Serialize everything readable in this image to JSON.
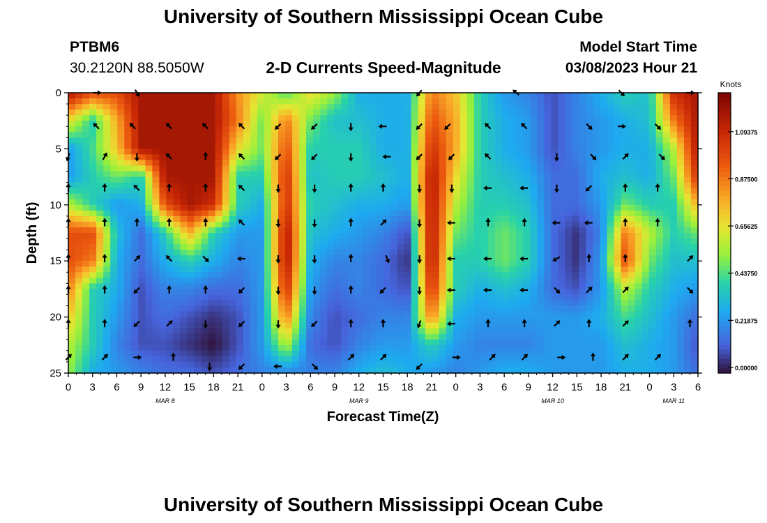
{
  "page_title": "University of Southern Mississippi Ocean Cube",
  "page_title_bottom": "University of Southern Mississippi Ocean Cube",
  "station": {
    "id": "PTBM6",
    "coords": "30.2120N  88.5050W"
  },
  "model": {
    "label": "Model Start Time",
    "value": "03/08/2023 Hour 21"
  },
  "colorbar": {
    "unit": "Knots",
    "ticks": [
      "1.09375",
      "0.87500",
      "0.65625",
      "0.43750",
      "0.21875",
      "0.00000"
    ],
    "tick_values": [
      1.09375,
      0.875,
      0.65625,
      0.4375,
      0.21875,
      0.0
    ],
    "range": [
      0,
      1.3
    ]
  },
  "chart_data": {
    "type": "heatmap",
    "title": "2-D Currents Speed-Magnitude",
    "xlabel": "Forecast Time(Z)",
    "ylabel": "Depth (ft)",
    "ylim": [
      0,
      25
    ],
    "y_ticks": [
      "0",
      "5",
      "10",
      "15",
      "20",
      "25"
    ],
    "y_tick_values": [
      0,
      5,
      10,
      15,
      20,
      25
    ],
    "x_ticks": [
      "0",
      "3",
      "6",
      "9",
      "12",
      "15",
      "18",
      "21",
      "0",
      "3",
      "6",
      "9",
      "12",
      "15",
      "18",
      "21",
      "0",
      "3",
      "6",
      "9",
      "12",
      "15",
      "18",
      "21",
      "0",
      "3",
      "6"
    ],
    "x_tick_hours": [
      0,
      3,
      6,
      9,
      12,
      15,
      18,
      21,
      24,
      27,
      30,
      33,
      36,
      39,
      42,
      45,
      48,
      51,
      54,
      57,
      60,
      63,
      66,
      69,
      72,
      75,
      78
    ],
    "date_labels": [
      {
        "text": "MAR 8",
        "hour": 12
      },
      {
        "text": "MAR 9",
        "hour": 36
      },
      {
        "text": "MAR 10",
        "hour": 60
      },
      {
        "text": "MAR 11",
        "hour": 75
      }
    ],
    "x_hours_range": [
      0,
      78
    ],
    "depths": [
      0,
      2.5,
      5,
      7.5,
      10,
      12.5,
      15,
      17.5,
      20,
      22.5,
      25
    ],
    "hours": [
      0,
      3,
      6,
      9,
      12,
      15,
      18,
      21,
      24,
      27,
      30,
      33,
      36,
      39,
      42,
      45,
      48,
      51,
      54,
      57,
      60,
      63,
      66,
      69,
      72,
      75,
      78
    ],
    "speed_knots": [
      [
        1.2,
        1.0,
        1.0,
        1.2,
        1.2,
        1.2,
        1.2,
        0.85,
        0.65,
        0.45,
        0.7,
        0.55,
        0.3,
        0.3,
        0.3,
        0.9,
        0.75,
        0.4,
        0.25,
        0.2,
        0.1,
        0.2,
        0.3,
        0.4,
        0.35,
        1.1,
        1.2
      ],
      [
        0.7,
        0.4,
        0.8,
        1.2,
        1.2,
        1.2,
        1.2,
        0.9,
        0.5,
        0.9,
        0.5,
        0.35,
        0.35,
        0.3,
        0.3,
        1.0,
        0.8,
        0.4,
        0.3,
        0.25,
        0.1,
        0.2,
        0.25,
        0.3,
        0.35,
        0.9,
        1.2
      ],
      [
        0.25,
        0.45,
        0.75,
        1.2,
        1.2,
        1.2,
        1.2,
        0.7,
        0.5,
        1.0,
        0.4,
        0.4,
        0.4,
        0.3,
        0.3,
        1.1,
        0.8,
        0.4,
        0.3,
        0.25,
        0.1,
        0.2,
        0.25,
        0.3,
        0.3,
        0.6,
        1.2
      ],
      [
        0.25,
        0.4,
        0.5,
        0.4,
        1.2,
        1.2,
        1.2,
        0.4,
        0.4,
        1.1,
        0.35,
        0.4,
        0.4,
        0.35,
        0.3,
        1.2,
        0.7,
        0.4,
        0.35,
        0.3,
        0.15,
        0.15,
        0.3,
        0.35,
        0.3,
        0.5,
        1.1
      ],
      [
        0.6,
        0.4,
        0.25,
        0.3,
        1.0,
        1.2,
        1.1,
        0.4,
        0.3,
        1.1,
        0.4,
        0.35,
        0.3,
        0.3,
        0.25,
        1.2,
        0.6,
        0.4,
        0.4,
        0.35,
        0.15,
        0.15,
        0.25,
        0.5,
        0.4,
        0.4,
        0.8
      ],
      [
        1.0,
        1.0,
        0.35,
        0.15,
        0.4,
        0.8,
        0.4,
        0.25,
        0.25,
        1.2,
        0.35,
        0.3,
        0.25,
        0.2,
        0.1,
        1.2,
        0.5,
        0.4,
        0.5,
        0.4,
        0.15,
        0.05,
        0.2,
        0.9,
        0.6,
        0.4,
        0.5
      ],
      [
        1.0,
        0.9,
        0.3,
        0.15,
        0.3,
        0.4,
        0.3,
        0.2,
        0.25,
        1.2,
        0.3,
        0.2,
        0.2,
        0.15,
        0.05,
        1.2,
        0.4,
        0.4,
        0.5,
        0.4,
        0.15,
        0.05,
        0.25,
        1.0,
        0.5,
        0.35,
        0.35
      ],
      [
        0.9,
        0.4,
        0.3,
        0.1,
        0.2,
        0.2,
        0.15,
        0.15,
        0.25,
        1.1,
        0.25,
        0.15,
        0.2,
        0.15,
        0.1,
        1.1,
        0.4,
        0.3,
        0.35,
        0.3,
        0.15,
        0.1,
        0.25,
        0.6,
        0.4,
        0.3,
        0.25
      ],
      [
        0.75,
        0.4,
        0.25,
        0.1,
        0.15,
        0.1,
        0.05,
        0.1,
        0.25,
        0.9,
        0.2,
        0.1,
        0.15,
        0.2,
        0.2,
        0.9,
        0.3,
        0.25,
        0.25,
        0.25,
        0.25,
        0.25,
        0.3,
        0.45,
        0.35,
        0.25,
        0.15
      ],
      [
        0.6,
        0.4,
        0.2,
        0.1,
        0.1,
        0.05,
        0.0,
        0.1,
        0.25,
        0.6,
        0.15,
        0.1,
        0.2,
        0.25,
        0.25,
        0.4,
        0.25,
        0.2,
        0.2,
        0.2,
        0.25,
        0.25,
        0.25,
        0.35,
        0.3,
        0.25,
        0.1
      ],
      [
        0.55,
        0.3,
        0.25,
        0.2,
        0.15,
        0.15,
        0.1,
        0.15,
        0.2,
        0.2,
        0.2,
        0.2,
        0.3,
        0.35,
        0.3,
        0.25,
        0.2,
        0.25,
        0.3,
        0.3,
        0.25,
        0.25,
        0.25,
        0.3,
        0.3,
        0.25,
        0.15
      ]
    ],
    "vectors": [
      {
        "hour": 3.5,
        "depth": 0.0,
        "dir": 90
      },
      {
        "hour": 8.5,
        "depth": 0.0,
        "dir": 150
      },
      {
        "hour": 43.5,
        "depth": 0.0,
        "dir": 220
      },
      {
        "hour": 55.5,
        "depth": 0.0,
        "dir": 310
      },
      {
        "hour": 68.5,
        "depth": 0.0,
        "dir": 135
      },
      {
        "hour": 77,
        "depth": 0.0,
        "dir": 90
      },
      {
        "hour": 3.5,
        "depth": 3.0,
        "dir": 315
      },
      {
        "hour": 8.0,
        "depth": 3.0,
        "dir": 315
      },
      {
        "hour": 12.5,
        "depth": 3.0,
        "dir": 315
      },
      {
        "hour": 17.0,
        "depth": 3.0,
        "dir": 315
      },
      {
        "hour": 21.5,
        "depth": 3.0,
        "dir": 315
      },
      {
        "hour": 26.0,
        "depth": 3.0,
        "dir": 225
      },
      {
        "hour": 30.5,
        "depth": 3.0,
        "dir": 225
      },
      {
        "hour": 35.0,
        "depth": 3.0,
        "dir": 180
      },
      {
        "hour": 39.0,
        "depth": 3.0,
        "dir": 270
      },
      {
        "hour": 43.5,
        "depth": 3.0,
        "dir": 225
      },
      {
        "hour": 47.0,
        "depth": 3.0,
        "dir": 225
      },
      {
        "hour": 52.0,
        "depth": 3.0,
        "dir": 315
      },
      {
        "hour": 56.5,
        "depth": 3.0,
        "dir": 315
      },
      {
        "hour": 64.5,
        "depth": 3.0,
        "dir": 135
      },
      {
        "hour": 68.5,
        "depth": 3.0,
        "dir": 90
      },
      {
        "hour": 73.0,
        "depth": 3.0,
        "dir": 135
      },
      {
        "hour": 0.0,
        "depth": 5.7,
        "dir": 200
      },
      {
        "hour": 4.5,
        "depth": 5.7,
        "dir": 30
      },
      {
        "hour": 8.5,
        "depth": 5.7,
        "dir": 180
      },
      {
        "hour": 12.5,
        "depth": 5.7,
        "dir": 315
      },
      {
        "hour": 17.0,
        "depth": 5.7,
        "dir": 0
      },
      {
        "hour": 21.5,
        "depth": 5.7,
        "dir": 315
      },
      {
        "hour": 26.0,
        "depth": 5.7,
        "dir": 225
      },
      {
        "hour": 30.5,
        "depth": 5.7,
        "dir": 225
      },
      {
        "hour": 35.0,
        "depth": 5.7,
        "dir": 180
      },
      {
        "hour": 39.5,
        "depth": 5.7,
        "dir": 270
      },
      {
        "hour": 43.5,
        "depth": 5.7,
        "dir": 225
      },
      {
        "hour": 47.5,
        "depth": 5.7,
        "dir": 225
      },
      {
        "hour": 52.0,
        "depth": 5.7,
        "dir": 315
      },
      {
        "hour": 60.5,
        "depth": 5.7,
        "dir": 180
      },
      {
        "hour": 65.0,
        "depth": 5.7,
        "dir": 135
      },
      {
        "hour": 69.0,
        "depth": 5.7,
        "dir": 45
      },
      {
        "hour": 73.5,
        "depth": 5.7,
        "dir": 135
      },
      {
        "hour": 0.0,
        "depth": 8.5,
        "dir": 0
      },
      {
        "hour": 4.5,
        "depth": 8.5,
        "dir": 0
      },
      {
        "hour": 8.5,
        "depth": 8.5,
        "dir": 315
      },
      {
        "hour": 12.5,
        "depth": 8.5,
        "dir": 0
      },
      {
        "hour": 17.0,
        "depth": 8.5,
        "dir": 0
      },
      {
        "hour": 21.5,
        "depth": 8.5,
        "dir": 315
      },
      {
        "hour": 26.0,
        "depth": 8.5,
        "dir": 180
      },
      {
        "hour": 30.5,
        "depth": 8.5,
        "dir": 180
      },
      {
        "hour": 35.0,
        "depth": 8.5,
        "dir": 0
      },
      {
        "hour": 39.0,
        "depth": 8.5,
        "dir": 0
      },
      {
        "hour": 43.5,
        "depth": 8.5,
        "dir": 180
      },
      {
        "hour": 47.5,
        "depth": 8.5,
        "dir": 180
      },
      {
        "hour": 52.0,
        "depth": 8.5,
        "dir": 270
      },
      {
        "hour": 56.5,
        "depth": 8.5,
        "dir": 270
      },
      {
        "hour": 60.5,
        "depth": 8.5,
        "dir": 180
      },
      {
        "hour": 64.5,
        "depth": 8.5,
        "dir": 225
      },
      {
        "hour": 69.0,
        "depth": 8.5,
        "dir": 0
      },
      {
        "hour": 73.0,
        "depth": 8.5,
        "dir": 0
      },
      {
        "hour": 0.0,
        "depth": 11.6,
        "dir": 0
      },
      {
        "hour": 4.5,
        "depth": 11.6,
        "dir": 0
      },
      {
        "hour": 8.5,
        "depth": 11.6,
        "dir": 0
      },
      {
        "hour": 12.5,
        "depth": 11.6,
        "dir": 0
      },
      {
        "hour": 17.0,
        "depth": 11.6,
        "dir": 0
      },
      {
        "hour": 21.5,
        "depth": 11.6,
        "dir": 315
      },
      {
        "hour": 26.0,
        "depth": 11.6,
        "dir": 180
      },
      {
        "hour": 30.5,
        "depth": 11.6,
        "dir": 180
      },
      {
        "hour": 35.0,
        "depth": 11.6,
        "dir": 0
      },
      {
        "hour": 39.0,
        "depth": 11.6,
        "dir": 45
      },
      {
        "hour": 43.5,
        "depth": 11.6,
        "dir": 180
      },
      {
        "hour": 47.5,
        "depth": 11.6,
        "dir": 270
      },
      {
        "hour": 52.0,
        "depth": 11.6,
        "dir": 0
      },
      {
        "hour": 56.5,
        "depth": 11.6,
        "dir": 0
      },
      {
        "hour": 60.5,
        "depth": 11.6,
        "dir": 270
      },
      {
        "hour": 64.5,
        "depth": 11.6,
        "dir": 270
      },
      {
        "hour": 69.0,
        "depth": 11.6,
        "dir": 0
      },
      {
        "hour": 73.0,
        "depth": 11.6,
        "dir": 0
      },
      {
        "hour": 0.0,
        "depth": 14.8,
        "dir": 0
      },
      {
        "hour": 4.5,
        "depth": 14.8,
        "dir": 0
      },
      {
        "hour": 8.5,
        "depth": 14.8,
        "dir": 45
      },
      {
        "hour": 12.5,
        "depth": 14.8,
        "dir": 315
      },
      {
        "hour": 17.0,
        "depth": 14.8,
        "dir": 135
      },
      {
        "hour": 21.5,
        "depth": 14.8,
        "dir": 270
      },
      {
        "hour": 26.0,
        "depth": 14.8,
        "dir": 180
      },
      {
        "hour": 30.5,
        "depth": 14.8,
        "dir": 180
      },
      {
        "hour": 35.0,
        "depth": 14.8,
        "dir": 0
      },
      {
        "hour": 39.5,
        "depth": 14.8,
        "dir": 160
      },
      {
        "hour": 43.5,
        "depth": 14.8,
        "dir": 180
      },
      {
        "hour": 47.5,
        "depth": 14.8,
        "dir": 270
      },
      {
        "hour": 52.0,
        "depth": 14.8,
        "dir": 270
      },
      {
        "hour": 56.5,
        "depth": 14.8,
        "dir": 270
      },
      {
        "hour": 60.5,
        "depth": 14.8,
        "dir": 240
      },
      {
        "hour": 64.5,
        "depth": 14.8,
        "dir": 0
      },
      {
        "hour": 69.0,
        "depth": 14.8,
        "dir": 0
      },
      {
        "hour": 77.0,
        "depth": 14.8,
        "dir": 45
      },
      {
        "hour": 0.0,
        "depth": 17.6,
        "dir": 0
      },
      {
        "hour": 4.5,
        "depth": 17.6,
        "dir": 0
      },
      {
        "hour": 8.5,
        "depth": 17.6,
        "dir": 225
      },
      {
        "hour": 12.5,
        "depth": 17.6,
        "dir": 0
      },
      {
        "hour": 17.0,
        "depth": 17.6,
        "dir": 0
      },
      {
        "hour": 21.5,
        "depth": 17.6,
        "dir": 225
      },
      {
        "hour": 26.0,
        "depth": 17.6,
        "dir": 180
      },
      {
        "hour": 30.5,
        "depth": 17.6,
        "dir": 180
      },
      {
        "hour": 35.0,
        "depth": 17.6,
        "dir": 0
      },
      {
        "hour": 39.0,
        "depth": 17.6,
        "dir": 225
      },
      {
        "hour": 43.5,
        "depth": 17.6,
        "dir": 180
      },
      {
        "hour": 47.5,
        "depth": 17.6,
        "dir": 270
      },
      {
        "hour": 52.0,
        "depth": 17.6,
        "dir": 270
      },
      {
        "hour": 56.5,
        "depth": 17.6,
        "dir": 270
      },
      {
        "hour": 60.5,
        "depth": 17.6,
        "dir": 135
      },
      {
        "hour": 64.5,
        "depth": 17.6,
        "dir": 45
      },
      {
        "hour": 69.0,
        "depth": 17.6,
        "dir": 45
      },
      {
        "hour": 77.0,
        "depth": 17.6,
        "dir": 135
      },
      {
        "hour": 0.0,
        "depth": 20.6,
        "dir": 0
      },
      {
        "hour": 4.5,
        "depth": 20.6,
        "dir": 0
      },
      {
        "hour": 8.5,
        "depth": 20.6,
        "dir": 225
      },
      {
        "hour": 12.5,
        "depth": 20.6,
        "dir": 45
      },
      {
        "hour": 17.0,
        "depth": 20.6,
        "dir": 180
      },
      {
        "hour": 21.5,
        "depth": 20.6,
        "dir": 225
      },
      {
        "hour": 26.0,
        "depth": 20.6,
        "dir": 180
      },
      {
        "hour": 30.5,
        "depth": 20.6,
        "dir": 225
      },
      {
        "hour": 35.0,
        "depth": 20.6,
        "dir": 0
      },
      {
        "hour": 39.0,
        "depth": 20.6,
        "dir": 0
      },
      {
        "hour": 43.5,
        "depth": 20.6,
        "dir": 200
      },
      {
        "hour": 47.5,
        "depth": 20.6,
        "dir": 270
      },
      {
        "hour": 52.0,
        "depth": 20.6,
        "dir": 0
      },
      {
        "hour": 56.5,
        "depth": 20.6,
        "dir": 0
      },
      {
        "hour": 60.5,
        "depth": 20.6,
        "dir": 45
      },
      {
        "hour": 64.5,
        "depth": 20.6,
        "dir": 0
      },
      {
        "hour": 69.0,
        "depth": 20.6,
        "dir": 45
      },
      {
        "hour": 77.0,
        "depth": 20.6,
        "dir": 0
      },
      {
        "hour": 0.0,
        "depth": 23.6,
        "dir": 45
      },
      {
        "hour": 4.5,
        "depth": 23.6,
        "dir": 45
      },
      {
        "hour": 8.5,
        "depth": 23.6,
        "dir": 90
      },
      {
        "hour": 13.0,
        "depth": 23.6,
        "dir": 0
      },
      {
        "hour": 17.5,
        "depth": 24.4,
        "dir": 180
      },
      {
        "hour": 21.5,
        "depth": 24.4,
        "dir": 225
      },
      {
        "hour": 26.0,
        "depth": 24.4,
        "dir": 270
      },
      {
        "hour": 30.5,
        "depth": 24.4,
        "dir": 135
      },
      {
        "hour": 35.0,
        "depth": 23.6,
        "dir": 45
      },
      {
        "hour": 39.0,
        "depth": 23.6,
        "dir": 45
      },
      {
        "hour": 43.5,
        "depth": 24.4,
        "dir": 225
      },
      {
        "hour": 48.0,
        "depth": 23.6,
        "dir": 90
      },
      {
        "hour": 52.5,
        "depth": 23.6,
        "dir": 45
      },
      {
        "hour": 56.5,
        "depth": 23.6,
        "dir": 45
      },
      {
        "hour": 61.0,
        "depth": 23.6,
        "dir": 90
      },
      {
        "hour": 65.0,
        "depth": 23.6,
        "dir": 0
      },
      {
        "hour": 69.0,
        "depth": 23.6,
        "dir": 45
      },
      {
        "hour": 73.0,
        "depth": 23.6,
        "dir": 45
      }
    ]
  }
}
